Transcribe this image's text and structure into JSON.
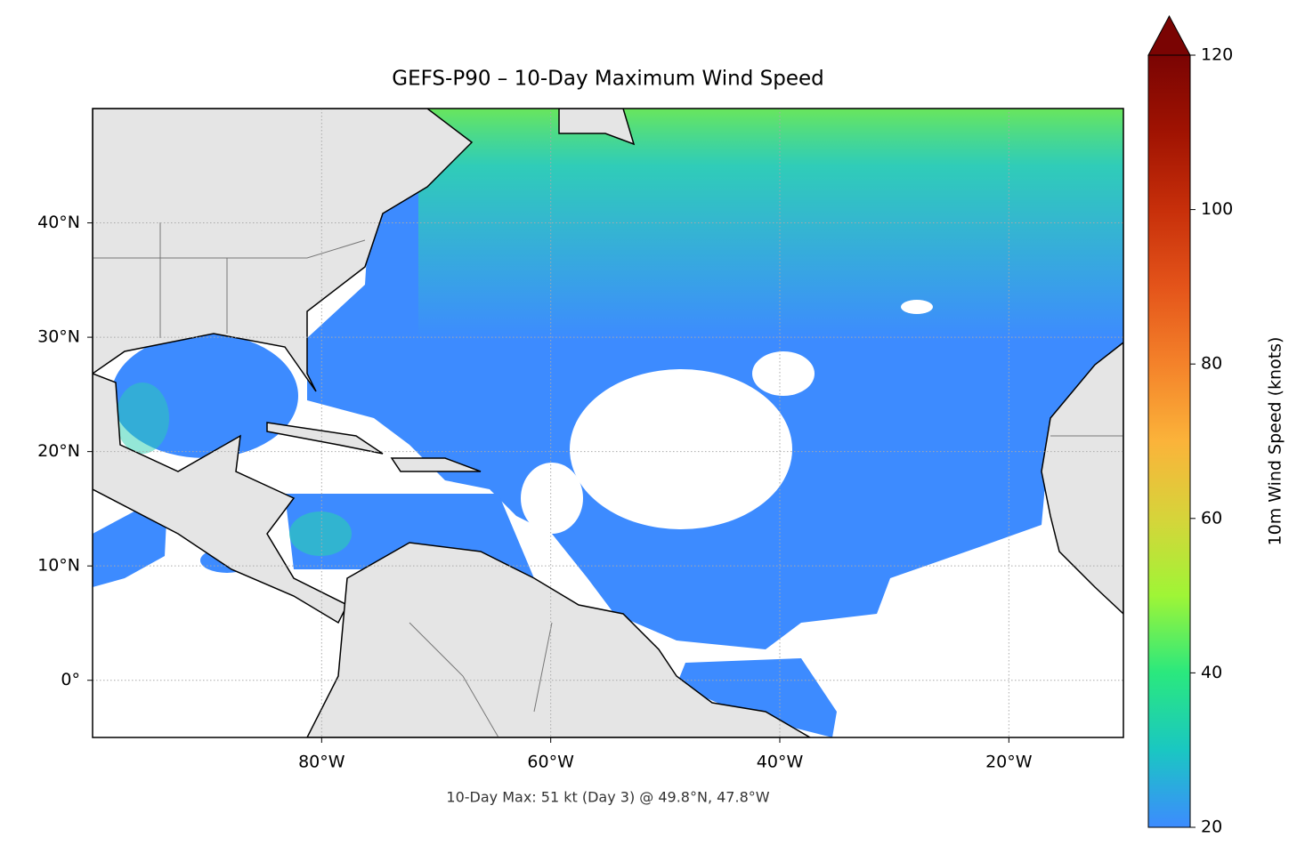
{
  "chart_data": {
    "type": "map",
    "title": "GEFS-P90 – 10-Day Maximum Wind Speed",
    "annotation": "10-Day Max: 51 kt (Day 3) @ 49.8°N, 47.8°W",
    "xlim": [
      -100,
      -10
    ],
    "ylim": [
      -5,
      50
    ],
    "xticks": [
      {
        "value": -80,
        "label": "80°W"
      },
      {
        "value": -60,
        "label": "60°W"
      },
      {
        "value": -40,
        "label": "40°W"
      },
      {
        "value": -20,
        "label": "20°W"
      }
    ],
    "yticks": [
      {
        "value": 0,
        "label": "0°"
      },
      {
        "value": 10,
        "label": "10°N"
      },
      {
        "value": 20,
        "label": "20°N"
      },
      {
        "value": 30,
        "label": "30°N"
      },
      {
        "value": 40,
        "label": "40°N"
      }
    ],
    "grid": true,
    "colorbar": {
      "label": "10m Wind Speed (knots)",
      "lim": [
        20,
        120
      ],
      "ticks": [
        20,
        40,
        60,
        80,
        100,
        120
      ],
      "colors": [
        "#3d8bff",
        "#1ac7c2",
        "#2ae87e",
        "#9ff536",
        "#d6d43a",
        "#fbb33a",
        "#f4822a",
        "#e4541a",
        "#c72f0a",
        "#a01302",
        "#7a0403"
      ],
      "extend": "max"
    }
  }
}
